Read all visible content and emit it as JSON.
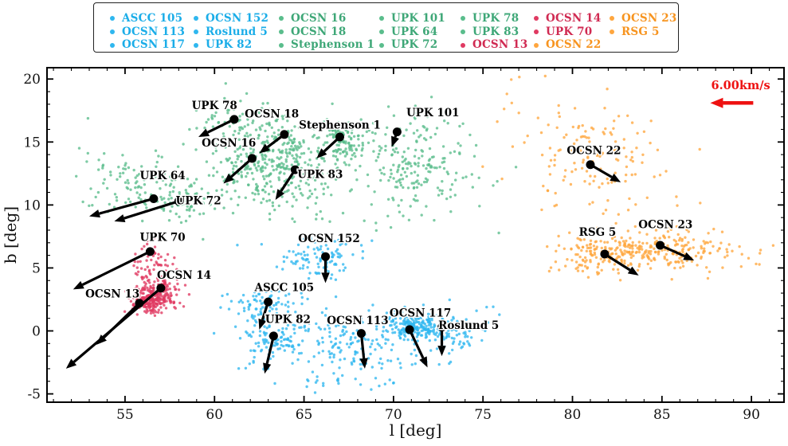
{
  "figure": {
    "background": "#ffffff",
    "accent_black": "#000000"
  },
  "legend": {
    "columns": [
      {
        "items": [
          {
            "label": "ASCC 105",
            "group": "cyan"
          },
          {
            "label": "OCSN 113",
            "group": "cyan"
          },
          {
            "label": "OCSN 117",
            "group": "cyan"
          }
        ]
      },
      {
        "items": [
          {
            "label": "OCSN 152",
            "group": "cyan"
          },
          {
            "label": "Roslund 5",
            "group": "cyan"
          },
          {
            "label": "UPK 82",
            "group": "cyan"
          }
        ]
      },
      {
        "items": [
          {
            "label": "OCSN 16",
            "group": "green"
          },
          {
            "label": "OCSN 18",
            "group": "green"
          },
          {
            "label": "Stephenson 1",
            "group": "green"
          }
        ]
      },
      {
        "items": [
          {
            "label": "UPK 101",
            "group": "green"
          },
          {
            "label": "UPK 64",
            "group": "green"
          },
          {
            "label": "UPK 72",
            "group": "green"
          }
        ]
      },
      {
        "items": [
          {
            "label": "UPK 78",
            "group": "green"
          },
          {
            "label": "UPK 83",
            "group": "green"
          },
          {
            "label": "OCSN 13",
            "group": "red"
          }
        ]
      },
      {
        "items": [
          {
            "label": "OCSN 14",
            "group": "red"
          },
          {
            "label": "UPK 70",
            "group": "red"
          },
          {
            "label": "OCSN 22",
            "group": "orange"
          }
        ]
      },
      {
        "items": [
          {
            "label": "OCSN 23",
            "group": "orange"
          },
          {
            "label": "RSG 5",
            "group": "orange"
          }
        ]
      }
    ]
  },
  "chart_data": {
    "type": "scatter",
    "xlabel": "l [deg]",
    "ylabel": "b [deg]",
    "xlim": [
      50.64,
      91.82
    ],
    "ylim": [
      -5.66,
      20.9
    ],
    "x_ticks": [
      55,
      60,
      65,
      70,
      75,
      80,
      85,
      90
    ],
    "y_ticks": [
      -5,
      0,
      5,
      10,
      15,
      20
    ],
    "minor_tick_step": 1,
    "grid": false,
    "groups": {
      "cyan": {
        "point": "#2fb7ef",
        "text": "#1bade8"
      },
      "green": {
        "point": "#5abd8c",
        "text": "#3ea777"
      },
      "red": {
        "point": "#e03a62",
        "text": "#d02a52"
      },
      "orange": {
        "point": "#ffa63e",
        "text": "#f7941f"
      }
    },
    "velocity_scale": {
      "label": "6.00km/s",
      "color": "#ee1111",
      "tail": [
        90.1,
        18.1
      ],
      "tip": [
        87.7,
        18.1
      ],
      "label_xy": [
        89.4,
        19.45
      ]
    },
    "clusters": [
      {
        "name": "UPK 78",
        "group": "green",
        "dot": [
          61.1,
          16.8
        ],
        "tip": [
          59.1,
          15.4
        ],
        "label": [
          60.0,
          17.85
        ],
        "blob": {
          "c": [
            61.0,
            16.1
          ],
          "s": [
            1.2,
            1.1
          ],
          "n": 70
        }
      },
      {
        "name": "OCSN 18",
        "group": "green",
        "dot": [
          63.9,
          15.6
        ],
        "tip": [
          62.5,
          14.1
        ],
        "label": [
          63.2,
          17.2
        ],
        "blob": {
          "c": [
            63.8,
            14.8
          ],
          "s": [
            1.5,
            1.1
          ],
          "n": 130
        }
      },
      {
        "name": "OCSN 16",
        "group": "green",
        "dot": [
          62.1,
          13.7
        ],
        "tip": [
          60.5,
          11.7
        ],
        "label": [
          60.8,
          14.9
        ],
        "blob": {
          "c": [
            62.3,
            12.9
          ],
          "s": [
            1.3,
            1.3
          ],
          "n": 160
        }
      },
      {
        "name": "Stephenson 1",
        "group": "green",
        "dot": [
          67.0,
          15.4
        ],
        "tip": [
          65.7,
          13.7
        ],
        "label": [
          67.0,
          16.3
        ],
        "blob": {
          "c": [
            67.1,
            15.2
          ],
          "s": [
            0.8,
            0.9
          ],
          "n": 120
        }
      },
      {
        "name": "UPK 101",
        "group": "green",
        "dot": [
          70.2,
          15.8
        ],
        "tip": [
          69.9,
          14.6
        ],
        "label": [
          72.2,
          17.3
        ],
        "blob": {
          "c": [
            71.3,
            13.2
          ],
          "s": [
            1.6,
            2.2
          ],
          "n": 210
        }
      },
      {
        "name": "UPK 83",
        "group": "green",
        "dot": [
          64.5,
          12.8
        ],
        "tip": [
          63.4,
          10.4
        ],
        "label": [
          65.9,
          12.4
        ],
        "blob": {
          "c": [
            64.6,
            11.7
          ],
          "s": [
            1.3,
            1.5
          ],
          "n": 110
        }
      },
      {
        "name": "UPK 64",
        "group": "green",
        "dot": [
          56.6,
          10.5
        ],
        "tip": [
          53.0,
          9.1
        ],
        "label": [
          57.1,
          12.3
        ],
        "blob": {
          "c": [
            55.6,
            11.6
          ],
          "s": [
            1.5,
            1.2
          ],
          "n": 90
        }
      },
      {
        "name": "UPK 72",
        "group": "green",
        "dot": [
          58.0,
          10.3
        ],
        "tip": [
          54.4,
          8.7
        ],
        "label": [
          59.1,
          10.3
        ],
        "blob": {
          "c": [
            58.3,
            10.3
          ],
          "s": [
            1.1,
            1.0
          ],
          "n": 80
        }
      },
      {
        "name": "UPK 70",
        "group": "red",
        "dot": [
          56.4,
          6.3
        ],
        "tip": [
          52.1,
          3.3
        ],
        "label": [
          57.1,
          7.4
        ],
        "blob": {
          "c": [
            56.5,
            4.9
          ],
          "s": [
            0.55,
            1.0
          ],
          "n": 75
        }
      },
      {
        "name": "OCSN 14",
        "group": "red",
        "dot": [
          57.0,
          3.4
        ],
        "tip": [
          51.7,
          -3.0
        ],
        "label": [
          58.3,
          4.4
        ],
        "blob": {
          "c": [
            56.95,
            2.95
          ],
          "s": [
            0.55,
            0.55
          ],
          "n": 130
        }
      },
      {
        "name": "OCSN 13",
        "group": "red",
        "dot": [
          55.8,
          2.2
        ],
        "tip": [
          53.4,
          -1.1
        ],
        "label": [
          54.3,
          2.9
        ],
        "blob": {
          "c": [
            56.35,
            2.3
          ],
          "s": [
            0.5,
            0.45
          ],
          "n": 160
        }
      },
      {
        "name": "OCSN 152",
        "group": "cyan",
        "dot": [
          66.2,
          5.9
        ],
        "tip": [
          66.2,
          3.8
        ],
        "label": [
          66.4,
          7.3
        ],
        "blob": {
          "c": [
            65.9,
            5.8
          ],
          "s": [
            1.2,
            0.8
          ],
          "n": 110
        }
      },
      {
        "name": "ASCC 105",
        "group": "cyan",
        "dot": [
          63.0,
          2.3
        ],
        "tip": [
          62.5,
          0.1
        ],
        "label": [
          63.9,
          3.4
        ],
        "blob": {
          "c": [
            62.7,
            2.1
          ],
          "s": [
            1.0,
            0.75
          ],
          "n": 85
        }
      },
      {
        "name": "UPK 82",
        "group": "cyan",
        "dot": [
          63.3,
          -0.4
        ],
        "tip": [
          62.8,
          -3.4
        ],
        "label": [
          64.1,
          0.9
        ],
        "blob": {
          "c": [
            63.4,
            -0.9
          ],
          "s": [
            1.1,
            0.9
          ],
          "n": 120
        }
      },
      {
        "name": "OCSN 113",
        "group": "cyan",
        "dot": [
          68.2,
          -0.2
        ],
        "tip": [
          68.4,
          -3.0
        ],
        "label": [
          68.0,
          0.8
        ],
        "blob": {
          "c": [
            67.9,
            -1.2
          ],
          "s": [
            1.7,
            1.3
          ],
          "n": 150
        }
      },
      {
        "name": "OCSN 117",
        "group": "cyan",
        "dot": [
          70.9,
          0.1
        ],
        "tip": [
          71.9,
          -2.9
        ],
        "label": [
          71.5,
          1.4
        ],
        "blob": {
          "c": [
            71.1,
            0.4
          ],
          "s": [
            0.8,
            0.55
          ],
          "n": 210
        }
      },
      {
        "name": "Roslund 5",
        "group": "cyan",
        "dot": [
          72.7,
          0.3
        ],
        "tip": [
          72.7,
          -2.0
        ],
        "label": [
          74.2,
          0.4
        ],
        "blob": {
          "c": [
            72.9,
            -0.3
          ],
          "s": [
            0.9,
            0.9
          ],
          "n": 90
        }
      },
      {
        "name": "OCSN 22",
        "group": "orange",
        "dot": [
          81.0,
          13.2
        ],
        "tip": [
          82.7,
          11.8
        ],
        "label": [
          81.2,
          14.3
        ],
        "blob": {
          "c": [
            81.2,
            14.2
          ],
          "s": [
            2.1,
            2.2
          ],
          "n": 140
        }
      },
      {
        "name": "RSG 5",
        "group": "orange",
        "dot": [
          81.8,
          6.1
        ],
        "tip": [
          83.7,
          4.4
        ],
        "label": [
          81.4,
          7.8
        ],
        "blob": {
          "c": [
            81.7,
            6.1
          ],
          "s": [
            1.4,
            0.8
          ],
          "n": 160
        }
      },
      {
        "name": "OCSN 23",
        "group": "orange",
        "dot": [
          84.9,
          6.8
        ],
        "tip": [
          86.8,
          5.6
        ],
        "label": [
          85.2,
          8.4
        ],
        "blob": {
          "c": [
            85.3,
            6.5
          ],
          "s": [
            2.1,
            0.9
          ],
          "n": 200
        }
      }
    ],
    "extra_blobs": [
      {
        "group": "cyan",
        "c": [
          66.0,
          -4.2
        ],
        "s": [
          1.6,
          0.5
        ],
        "n": 14
      },
      {
        "group": "cyan",
        "c": [
          75.3,
          1.5
        ],
        "s": [
          0.5,
          0.6
        ],
        "n": 5
      },
      {
        "group": "orange",
        "c": [
          76.6,
          18.2
        ],
        "s": [
          0.5,
          1.2
        ],
        "n": 6
      },
      {
        "group": "green",
        "c": [
          53.5,
          13.5
        ],
        "s": [
          1.0,
          1.0
        ],
        "n": 12
      }
    ]
  }
}
